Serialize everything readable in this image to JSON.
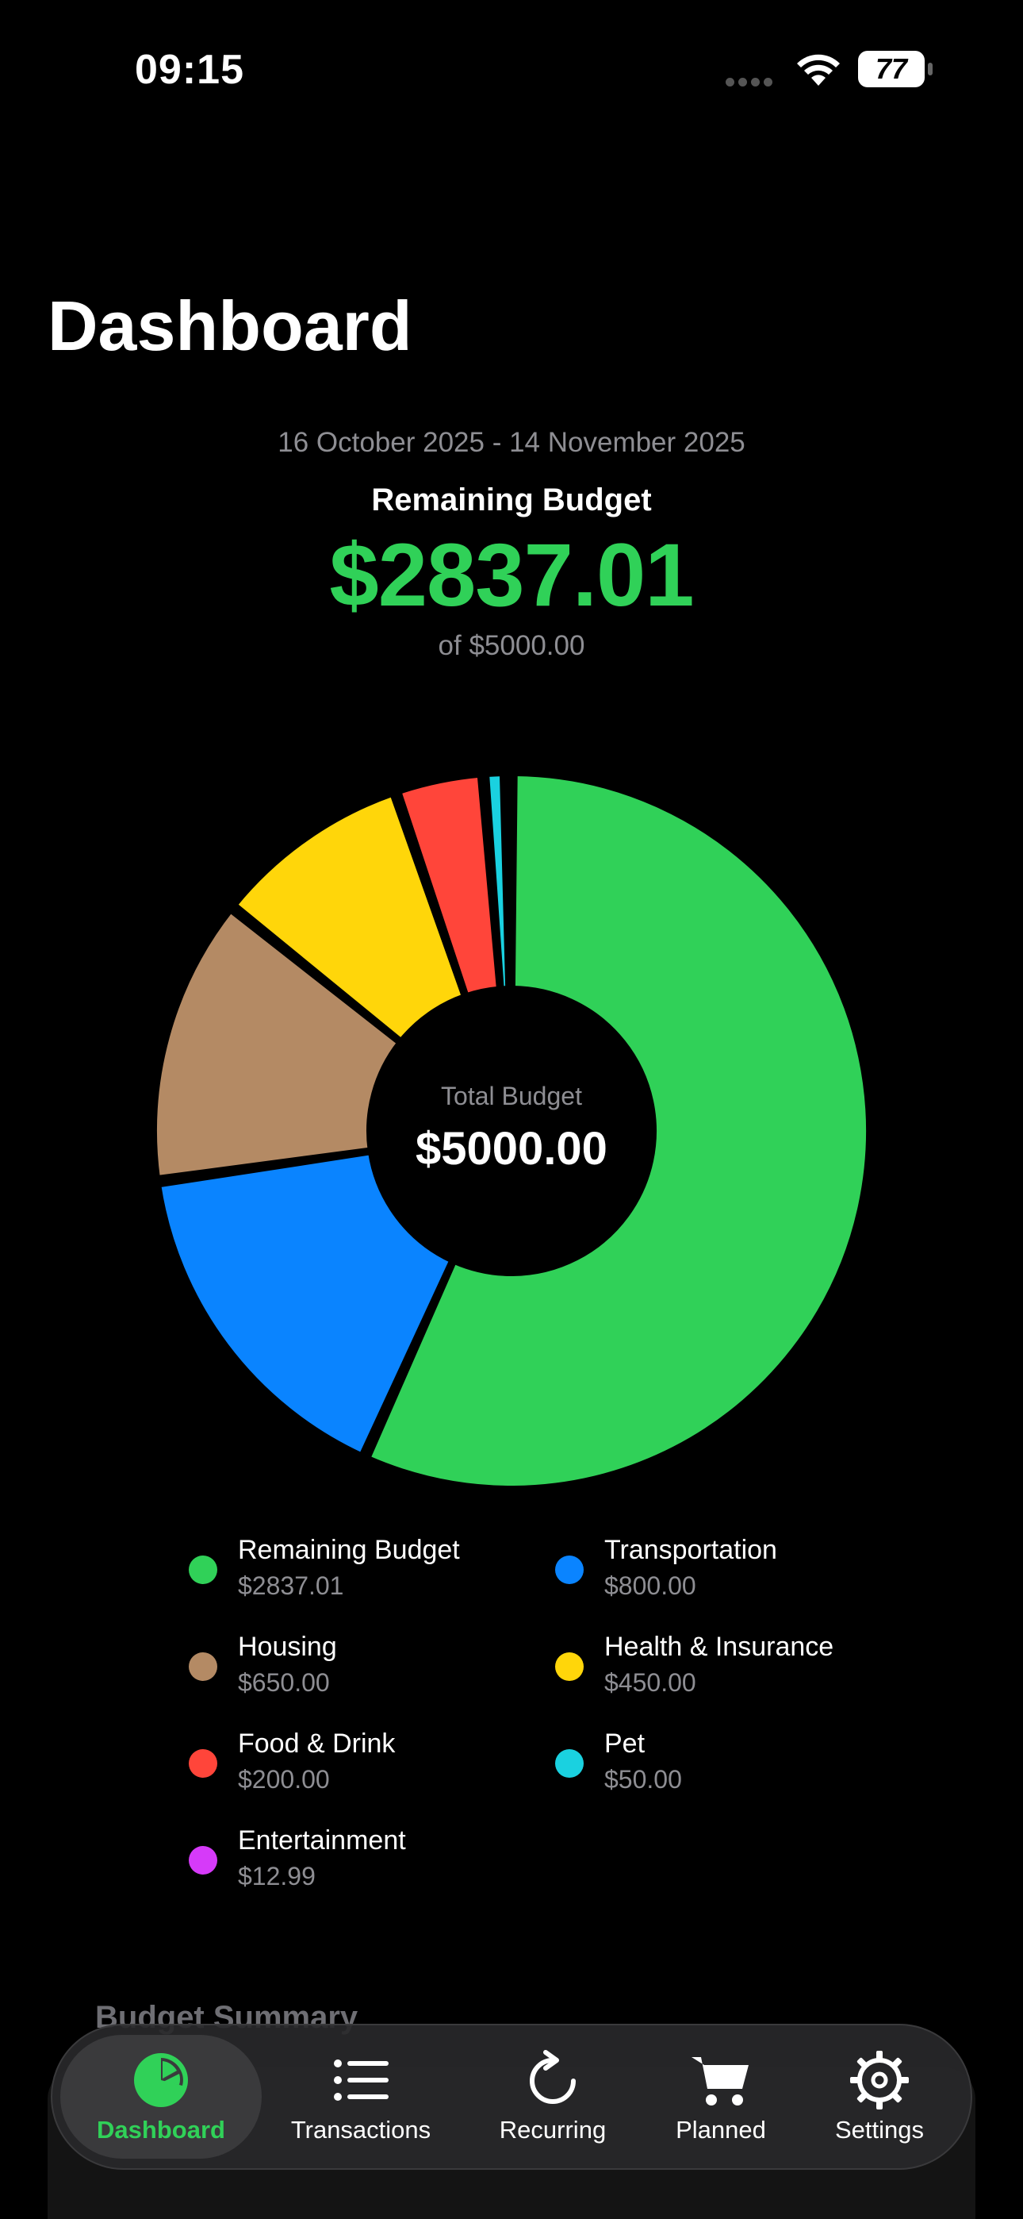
{
  "status_bar": {
    "time": "09:15",
    "battery": "77"
  },
  "page": {
    "title": "Dashboard",
    "date_range": "16 October 2025 - 14 November 2025",
    "remaining_label": "Remaining Budget",
    "remaining_amount": "$2837.01",
    "of_total": "of $5000.00"
  },
  "chart_data": {
    "type": "pie",
    "style": "donut",
    "center_label": "Total Budget",
    "center_value": "$5000.00",
    "total": 5000.0,
    "slices": [
      {
        "name": "Remaining Budget",
        "value": 2837.01,
        "display": "$2837.01",
        "color": "#30d158"
      },
      {
        "name": "Transportation",
        "value": 800.0,
        "display": "$800.00",
        "color": "#0a84ff"
      },
      {
        "name": "Housing",
        "value": 650.0,
        "display": "$650.00",
        "color": "#b48a64"
      },
      {
        "name": "Health & Insurance",
        "value": 450.0,
        "display": "$450.00",
        "color": "#ffd60a"
      },
      {
        "name": "Food & Drink",
        "value": 200.0,
        "display": "$200.00",
        "color": "#ff453a"
      },
      {
        "name": "Pet",
        "value": 50.0,
        "display": "$50.00",
        "color": "#1ad1e0"
      },
      {
        "name": "Entertainment",
        "value": 12.99,
        "display": "$12.99",
        "color": "#d63af9"
      }
    ]
  },
  "summary": {
    "heading": "Budget Summary"
  },
  "tab_bar": {
    "items": [
      {
        "label": "Dashboard",
        "icon": "pie-chart-icon",
        "active": true
      },
      {
        "label": "Transactions",
        "icon": "list-icon",
        "active": false
      },
      {
        "label": "Recurring",
        "icon": "refresh-icon",
        "active": false
      },
      {
        "label": "Planned",
        "icon": "cart-icon",
        "active": false
      },
      {
        "label": "Settings",
        "icon": "gear-icon",
        "active": false
      }
    ],
    "accent": "#30d158"
  }
}
